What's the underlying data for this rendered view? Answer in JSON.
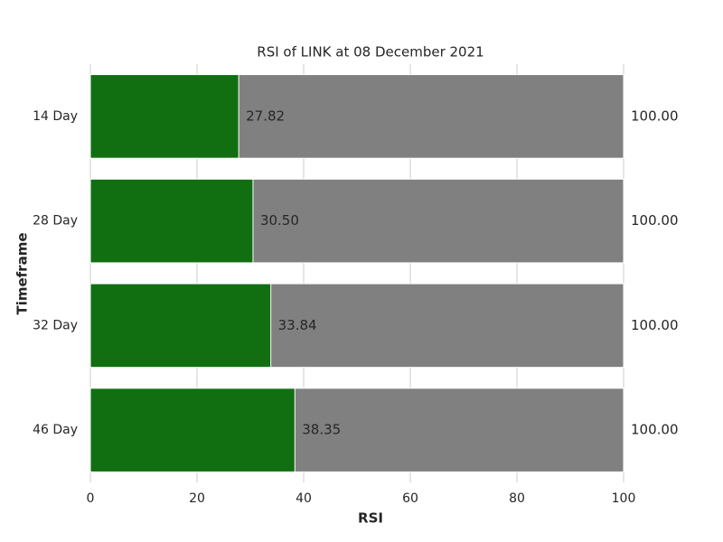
{
  "chart_data": {
    "type": "bar",
    "orientation": "horizontal",
    "title": "RSI of LINK at 08 December 2021",
    "x_label": "RSI",
    "y_label": "Timeframe",
    "categories": [
      "14 Day",
      "28 Day",
      "32 Day",
      "46 Day"
    ],
    "series": [
      {
        "color": "#808080",
        "values": [
          100,
          100,
          100,
          100
        ],
        "value_labels": [
          "100.00",
          "100.00",
          "100.00",
          "100.00"
        ]
      },
      {
        "color": "#116f11",
        "values": [
          27.82,
          30.5,
          33.84,
          38.35
        ],
        "value_labels": [
          "27.82",
          "30.50",
          "33.84",
          "38.35"
        ]
      }
    ],
    "xlim": [
      0,
      100
    ],
    "xticks": [
      0,
      20,
      40,
      60,
      80,
      100
    ],
    "grid": true
  }
}
